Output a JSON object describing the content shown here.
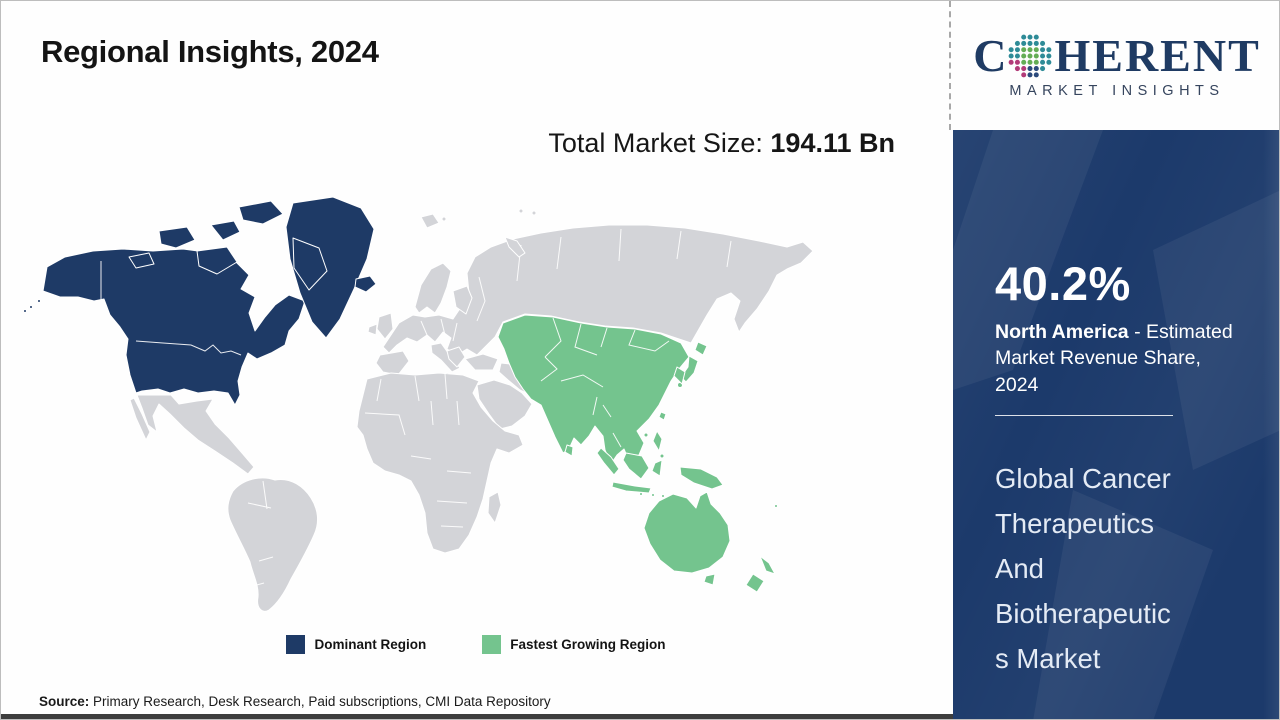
{
  "header": {
    "title": "Regional Insights, 2024"
  },
  "logo": {
    "text_before_globe": "C",
    "text_after_globe": "HERENT",
    "subtitle": "MARKET INSIGHTS",
    "brand_color": "#1f3b63",
    "globe_dot_colors": [
      "#2e8b97",
      "#64ad55",
      "#b23b78",
      "#2c4a7c"
    ]
  },
  "market_size": {
    "label": "Total Market Size: ",
    "value": "194.11 Bn"
  },
  "legend": {
    "items": [
      {
        "label": "Dominant Region",
        "color": "#1e3a66"
      },
      {
        "label": "Fastest Growing Region",
        "color": "#74c48e"
      }
    ]
  },
  "sidebar": {
    "background_color": "#1c3a6b",
    "share_value": "40.2%",
    "share_region": "North America",
    "share_line1_rest": " - Estimated",
    "share_line2": "Market Revenue Share,",
    "share_line3": "2024",
    "report_title_lines": [
      "Global Cancer",
      "Therapeutics",
      "And",
      "Biotherapeutic",
      "s Market"
    ]
  },
  "source": {
    "label": "Source:",
    "text": " Primary Research, Desk Research, Paid subscriptions, CMI Data Repository"
  },
  "chart_data": {
    "type": "choropleth_map",
    "title": "Regional Insights, 2024",
    "total_market_size": "194.11 Bn",
    "market_name": "Global Cancer Therapeutics And Biotherapeutics Market",
    "legend": [
      "Dominant Region",
      "Fastest Growing Region"
    ],
    "regions": [
      {
        "name": "North America",
        "category": "Dominant Region",
        "metric": "Estimated Market Revenue Share, 2024",
        "value_pct": 40.2
      },
      {
        "name": "Asia Pacific",
        "category": "Fastest Growing Region"
      }
    ]
  }
}
